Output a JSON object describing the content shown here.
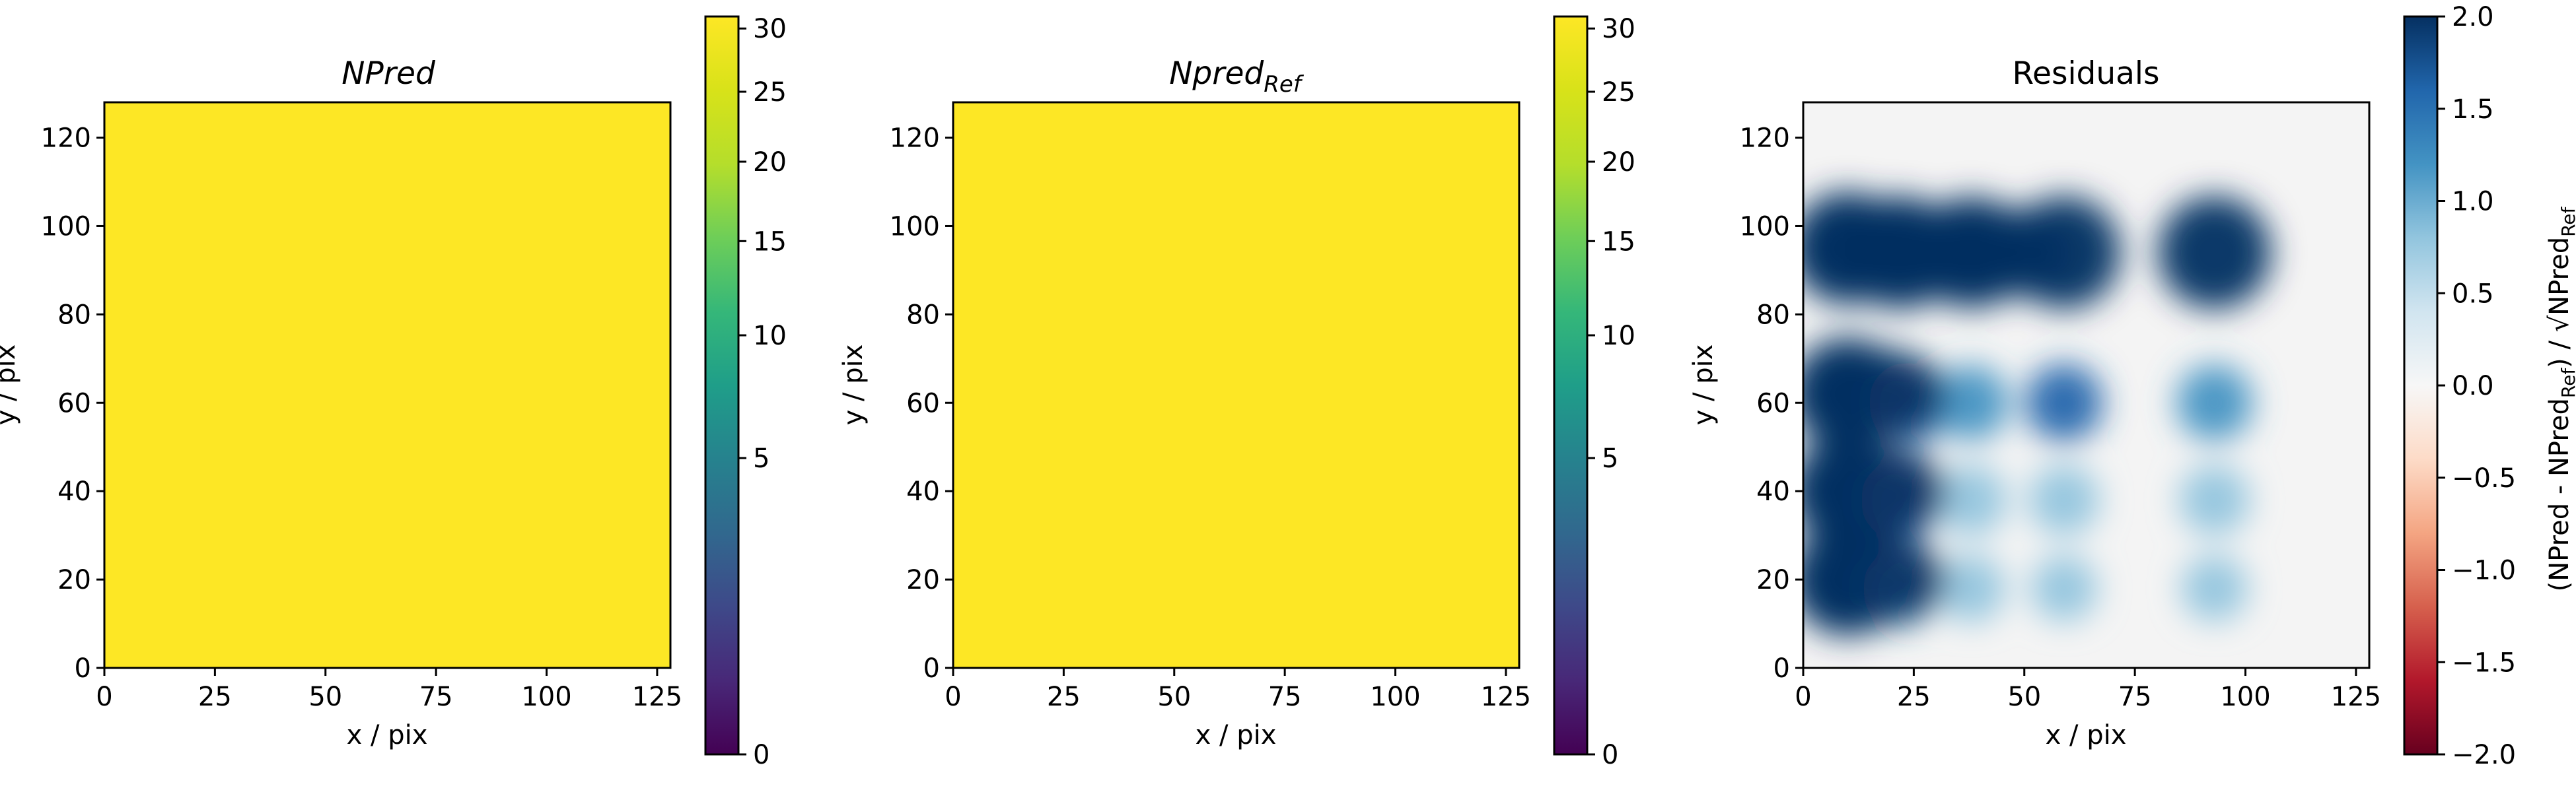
{
  "chart_data": [
    {
      "type": "heatmap",
      "title": "NPred",
      "title_italic": true,
      "xlabel": "x / pix",
      "ylabel": "y / pix",
      "xlim": [
        0,
        128
      ],
      "ylim": [
        0,
        128
      ],
      "xticks": [
        0,
        25,
        50,
        75,
        100,
        125
      ],
      "yticks": [
        0,
        20,
        40,
        60,
        80,
        100,
        120
      ],
      "fill_color": "#fde725",
      "fill_value": 31,
      "colorbar": {
        "colormap": "viridis",
        "scale": "sqrt",
        "range": [
          0,
          31
        ],
        "ticks": [
          0,
          5,
          10,
          15,
          20,
          25,
          30
        ],
        "label": ""
      }
    },
    {
      "type": "heatmap",
      "title": "Npred",
      "title_sub": "Ref",
      "title_italic": true,
      "xlabel": "x / pix",
      "ylabel": "y / pix",
      "xlim": [
        0,
        128
      ],
      "ylim": [
        0,
        128
      ],
      "xticks": [
        0,
        25,
        50,
        75,
        100,
        125
      ],
      "yticks": [
        0,
        20,
        40,
        60,
        80,
        100,
        120
      ],
      "fill_color": "#fde725",
      "fill_value": 31,
      "colorbar": {
        "colormap": "viridis",
        "scale": "sqrt",
        "range": [
          0,
          31
        ],
        "ticks": [
          0,
          5,
          10,
          15,
          20,
          25,
          30
        ],
        "label": ""
      }
    },
    {
      "type": "heatmap",
      "title": "Residuals",
      "title_italic": false,
      "xlabel": "x / pix",
      "ylabel": "y / pix",
      "xlim": [
        0,
        128
      ],
      "ylim": [
        0,
        128
      ],
      "xticks": [
        0,
        25,
        50,
        75,
        100,
        125
      ],
      "yticks": [
        0,
        20,
        40,
        60,
        80,
        100,
        120
      ],
      "background_color": "#f4f4f4",
      "sources": [
        {
          "x": 10,
          "y": 95,
          "value": 2.0
        },
        {
          "x": 22,
          "y": 94,
          "value": 2.0
        },
        {
          "x": 38,
          "y": 94,
          "value": 1.9
        },
        {
          "x": 59,
          "y": 94,
          "value": 2.0
        },
        {
          "x": 93,
          "y": 94,
          "value": 2.0
        },
        {
          "x": 10,
          "y": 62,
          "value": 2.0
        },
        {
          "x": 24,
          "y": 60,
          "value": 1.6
        },
        {
          "x": 38,
          "y": 60,
          "value": 1.1
        },
        {
          "x": 59,
          "y": 60,
          "value": 1.3
        },
        {
          "x": 93,
          "y": 60,
          "value": 1.2
        },
        {
          "x": 10,
          "y": 40,
          "value": 2.0
        },
        {
          "x": 22,
          "y": 38,
          "value": 1.5
        },
        {
          "x": 38,
          "y": 38,
          "value": 0.8
        },
        {
          "x": 59,
          "y": 38,
          "value": 0.8
        },
        {
          "x": 93,
          "y": 38,
          "value": 0.8
        },
        {
          "x": 10,
          "y": 20,
          "value": 2.0
        },
        {
          "x": 22,
          "y": 18,
          "value": 1.2
        },
        {
          "x": 38,
          "y": 18,
          "value": 0.6
        },
        {
          "x": 59,
          "y": 18,
          "value": 0.5
        },
        {
          "x": 93,
          "y": 18,
          "value": 0.5
        }
      ],
      "colorbar": {
        "colormap": "RdBu",
        "scale": "linear",
        "range": [
          -2.0,
          2.0
        ],
        "ticks": [
          -2.0,
          -1.5,
          -1.0,
          -0.5,
          0.0,
          0.5,
          1.0,
          1.5,
          2.0
        ],
        "tick_labels": [
          "−2.0",
          "−1.5",
          "−1.0",
          "−0.5",
          "0.0",
          "0.5",
          "1.0",
          "1.5",
          "2.0"
        ],
        "label": "(NPred - NPred",
        "label_sub": "Ref",
        "label_mid": ") / √NPred",
        "label_sub2": "Ref"
      }
    }
  ]
}
